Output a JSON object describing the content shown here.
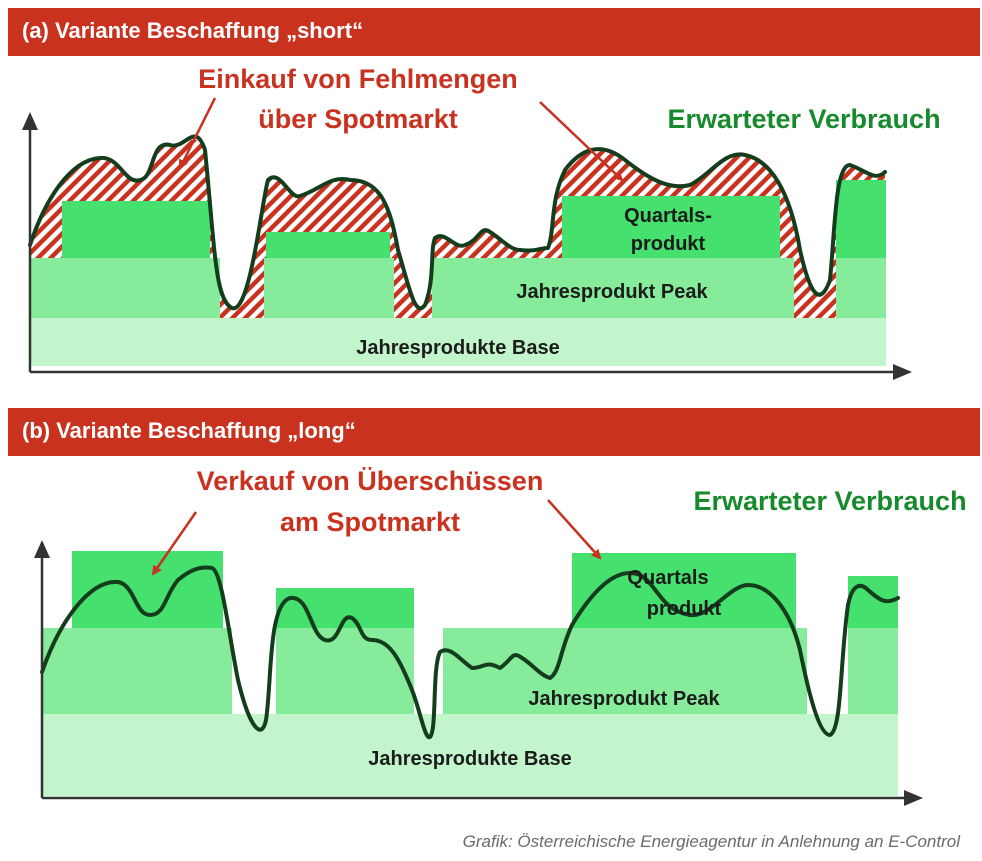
{
  "colors": {
    "banner": "#c8321f",
    "base": "#c3f5cc",
    "peak": "#86ec9b",
    "quarter": "#45e06e",
    "curve": "#133d1c",
    "annotation": "#c8321f",
    "consumption_label": "#178a2e",
    "note": "#6b6b6b"
  },
  "panel_a": {
    "title": "(a) Variante Beschaffung „short“",
    "annotation_line1": "Einkauf von Fehlmengen",
    "annotation_line2": "über Spotmarkt",
    "consumption_label": "Erwarteter Verbrauch",
    "quarter_label_line1": "Quartals-",
    "quarter_label_line2": "produkt",
    "peak_label": "Jahresprodukt Peak",
    "base_label": "Jahresprodukte Base"
  },
  "panel_b": {
    "title": "(b) Variante Beschaffung „long“",
    "annotation_line1": "Verkauf von Überschüssen",
    "annotation_line2": "am Spotmarkt",
    "consumption_label": "Erwarteter Verbrauch",
    "quarter_label_line1": "Quartals",
    "quarter_label_line2": "produkt",
    "peak_label": "Jahresprodukt Peak",
    "base_label": "Jahresprodukte Base"
  },
  "source_note": "Grafik: Österreichische Energieagentur in Anlehnung an E-Control"
}
